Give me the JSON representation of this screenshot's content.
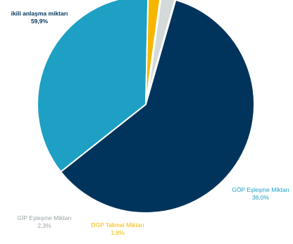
{
  "chart_data": {
    "type": "pie",
    "slices": [
      {
        "label": "ikili anlaşma miktarı",
        "value": 59.9,
        "display": "59,9%",
        "color": "#00345c",
        "label_color": "#00345c",
        "exploded": false
      },
      {
        "label": "GÖP Eşleşme Miktarı",
        "value": 36.0,
        "display": "36,0%",
        "color": "#1ea0c4",
        "label_color": "#1ea0c4",
        "exploded": false
      },
      {
        "label": "DGP Talimat Miktarı",
        "value": 1.8,
        "display": "1,8%",
        "color": "#f6b600",
        "label_color": "#f6b600",
        "exploded": false
      },
      {
        "label": "GİP Eşleşme Miktarı",
        "value": 2.3,
        "display": "2,3%",
        "color": "#d4d9da",
        "label_color": "#9aa3a6",
        "exploded": true
      }
    ]
  }
}
